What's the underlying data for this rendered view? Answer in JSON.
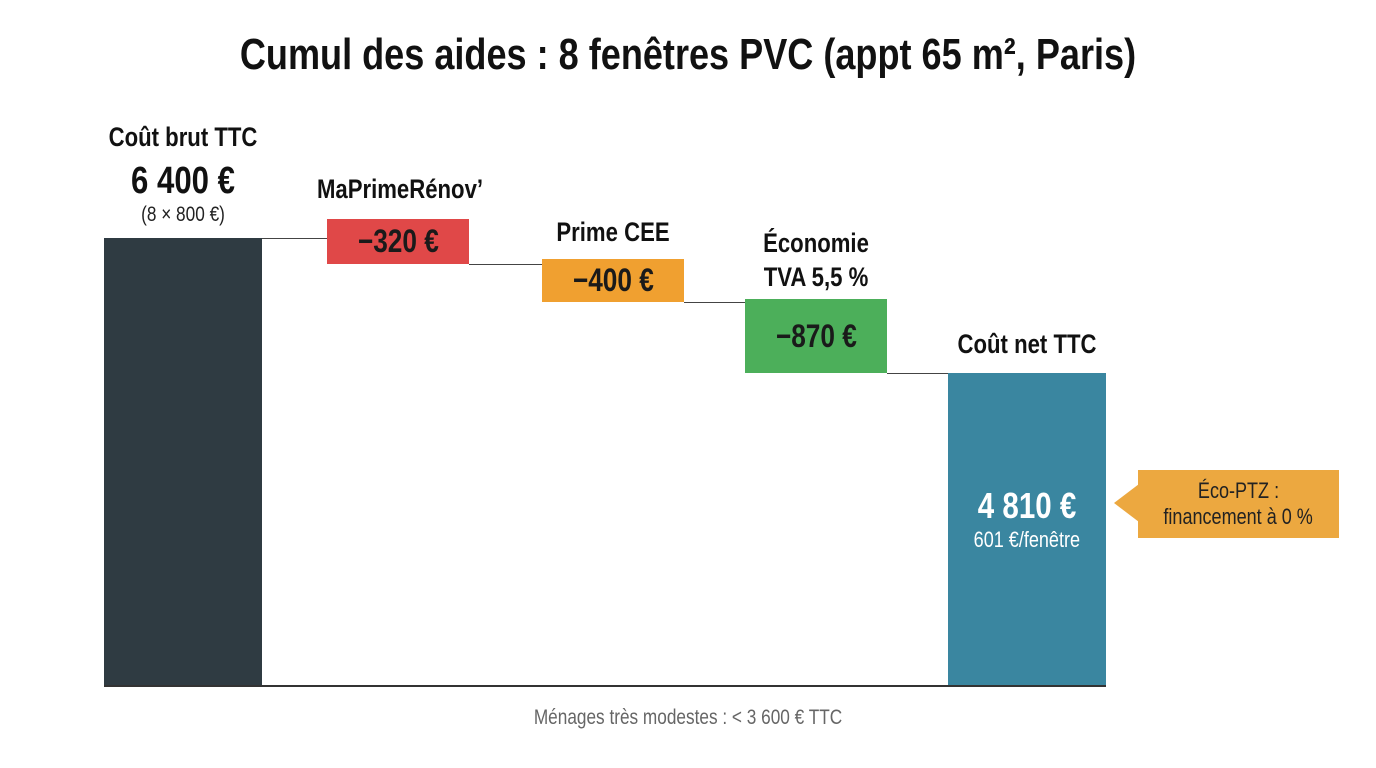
{
  "chart_data": {
    "type": "waterfall",
    "title": "Cumul des aides : 8 fenêtres PVC (appt 65 m², Paris)",
    "steps": [
      {
        "label": "Coût brut TTC",
        "value": 6400,
        "value_label": "6 400 €",
        "sublabel": "(8 × 800 €)",
        "kind": "total",
        "color": "#2f3b42"
      },
      {
        "label": "MaPrimeRénov’",
        "value": -320,
        "value_label": "−320 €",
        "kind": "delta",
        "color": "#e04848"
      },
      {
        "label": "Prime CEE",
        "value": -400,
        "value_label": "−400 €",
        "kind": "delta",
        "color": "#f0a030"
      },
      {
        "label": "Économie",
        "label2": "TVA 5,5 %",
        "value": -870,
        "value_label": "−870 €",
        "kind": "delta",
        "color": "#4caf5a"
      },
      {
        "label": "Coût net TTC",
        "value": 4810,
        "value_label": "4 810 €",
        "sublabel": "601 €/fenêtre",
        "kind": "total",
        "color": "#3a86a0"
      }
    ],
    "callout": {
      "line1": "Éco-PTZ :",
      "line2": "financement à 0 %",
      "color": "#eca840"
    },
    "footnote": "Ménages très modestes : < 3 600 € TTC"
  }
}
